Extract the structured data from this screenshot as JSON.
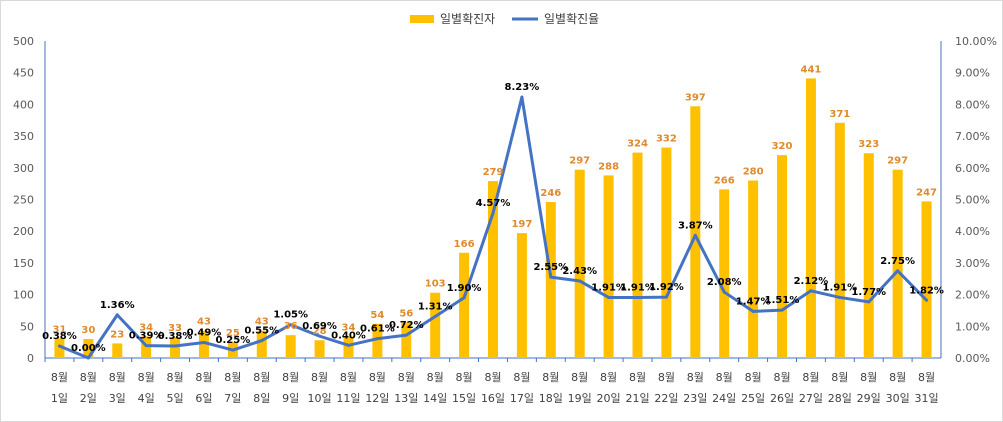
{
  "chart_data": {
    "type": "bar+line",
    "categories": [
      [
        "8월",
        "1일"
      ],
      [
        "8월",
        "2일"
      ],
      [
        "8월",
        "3일"
      ],
      [
        "8월",
        "4일"
      ],
      [
        "8월",
        "5일"
      ],
      [
        "8월",
        "6일"
      ],
      [
        "8월",
        "7일"
      ],
      [
        "8월",
        "8일"
      ],
      [
        "8월",
        "9일"
      ],
      [
        "8월",
        "10일"
      ],
      [
        "8월",
        "11일"
      ],
      [
        "8월",
        "12일"
      ],
      [
        "8월",
        "13일"
      ],
      [
        "8월",
        "14일"
      ],
      [
        "8월",
        "15일"
      ],
      [
        "8월",
        "16일"
      ],
      [
        "8월",
        "17일"
      ],
      [
        "8월",
        "18일"
      ],
      [
        "8월",
        "19일"
      ],
      [
        "8월",
        "20일"
      ],
      [
        "8월",
        "21일"
      ],
      [
        "8월",
        "22일"
      ],
      [
        "8월",
        "23일"
      ],
      [
        "8월",
        "24일"
      ],
      [
        "8월",
        "25일"
      ],
      [
        "8월",
        "26일"
      ],
      [
        "8월",
        "27일"
      ],
      [
        "8월",
        "28일"
      ],
      [
        "8월",
        "29일"
      ],
      [
        "8월",
        "30일"
      ],
      [
        "8월",
        "31일"
      ]
    ],
    "series": [
      {
        "name": "일별확진자",
        "type": "bar",
        "axis": "left",
        "color": "#ffc000",
        "label_color": "#e08a2c",
        "values": [
          31,
          30,
          23,
          34,
          33,
          43,
          25,
          43,
          36,
          28,
          34,
          54,
          56,
          103,
          166,
          279,
          197,
          246,
          297,
          288,
          324,
          332,
          397,
          266,
          280,
          320,
          441,
          371,
          323,
          297,
          247
        ],
        "labels": [
          "31",
          "30",
          "23",
          "34",
          "33",
          "43",
          "25",
          "43",
          "36",
          "28",
          "34",
          "54",
          "56",
          "103",
          "166",
          "279",
          "197",
          "246",
          "297",
          "288",
          "324",
          "332",
          "397",
          "266",
          "280",
          "320",
          "441",
          "371",
          "323",
          "297",
          "247"
        ]
      },
      {
        "name": "일별확진율",
        "type": "line",
        "axis": "right",
        "color": "#4472c4",
        "label_color": "#000000",
        "values": [
          0.38,
          0.0,
          1.36,
          0.39,
          0.38,
          0.49,
          0.25,
          0.55,
          1.05,
          0.69,
          0.4,
          0.61,
          0.72,
          1.31,
          1.9,
          4.57,
          8.23,
          2.55,
          2.43,
          1.91,
          1.91,
          1.92,
          3.87,
          2.08,
          1.47,
          1.51,
          2.12,
          1.91,
          1.77,
          2.75,
          1.82
        ],
        "labels": [
          "0.38%",
          "0.00%",
          "1.36%",
          "0.39%",
          "0.38%",
          "0.49%",
          "0.25%",
          "0.55%",
          "1.05%",
          "0.69%",
          "0.40%",
          "0.61%",
          "0.72%",
          "1.31%",
          "1.90%",
          "4.57%",
          "8.23%",
          "2.55%",
          "2.43%",
          "1.91%",
          "1.91%",
          "1.92%",
          "3.87%",
          "2.08%",
          "1.47%",
          "1.51%",
          "2.12%",
          "1.91%",
          "1.77%",
          "2.75%",
          "1.82%"
        ]
      }
    ],
    "y_left": {
      "min": 0,
      "max": 500,
      "ticks": [
        "0",
        "50",
        "100",
        "150",
        "200",
        "250",
        "300",
        "350",
        "400",
        "450",
        "500"
      ]
    },
    "y_right": {
      "min": 0,
      "max": 10,
      "ticks": [
        "0.00%",
        "1.00%",
        "2.00%",
        "3.00%",
        "4.00%",
        "5.00%",
        "6.00%",
        "7.00%",
        "8.00%",
        "9.00%",
        "10.00%"
      ]
    },
    "legend": {
      "position": "top-center",
      "entries": [
        "일별확진자",
        "일별확진율"
      ]
    },
    "grid": false,
    "axis_color": "#4472c4"
  }
}
